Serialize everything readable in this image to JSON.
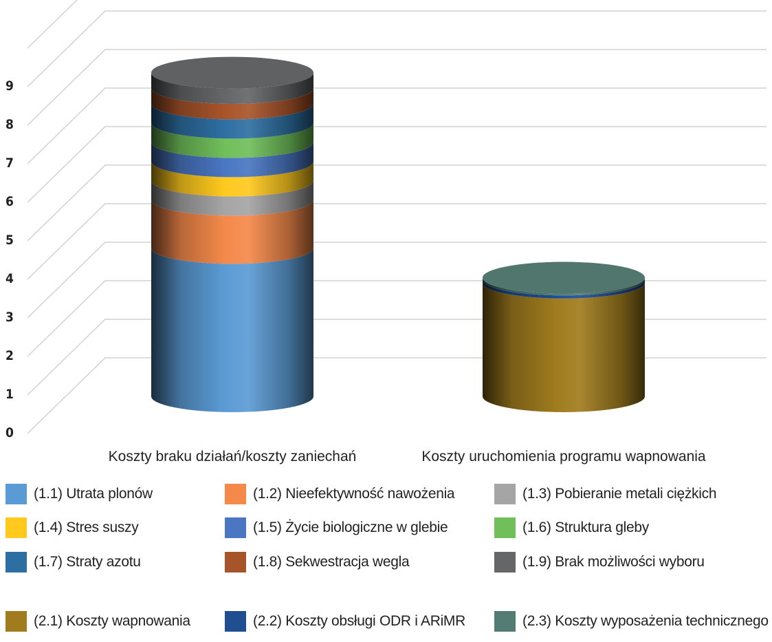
{
  "chart_data": {
    "type": "bar",
    "style": "3d-stacked-cylinder",
    "categories": [
      "Koszty braku działań/koszty zaniechań",
      "Koszty uruchomienia programu wapnowania"
    ],
    "yticks": [
      "0",
      "1",
      "2",
      "3",
      "4",
      "5",
      "6",
      "7",
      "8",
      "9"
    ],
    "ylim": [
      0,
      10
    ],
    "grid": true,
    "legend_position": "bottom",
    "series": [
      {
        "name": "(1.1) Utrata plonów",
        "color": "#5B9BD5",
        "values": [
          3.85,
          0
        ]
      },
      {
        "name": "(1.2) Nieefektywność nawożenia",
        "color": "#F4894A",
        "values": [
          1.25,
          0
        ]
      },
      {
        "name": "(1.3) Pobieranie metali ciężkich",
        "color": "#A5A5A5",
        "values": [
          0.5,
          0
        ]
      },
      {
        "name": "(1.4) Stres suszy",
        "color": "#FFC91E",
        "values": [
          0.5,
          0
        ]
      },
      {
        "name": "(1.5) Życie biologiczne w glebie",
        "color": "#4A76C2",
        "values": [
          0.5,
          0
        ]
      },
      {
        "name": "(1.6) Struktura gleby",
        "color": "#70BF5A",
        "values": [
          0.5,
          0
        ]
      },
      {
        "name": "(1.7) Straty azotu",
        "color": "#2E6FA3",
        "values": [
          0.5,
          0
        ]
      },
      {
        "name": "(1.8) Sekwestracja wegla",
        "color": "#A8542A",
        "values": [
          0.4,
          0
        ]
      },
      {
        "name": "(1.9) Brak możliwości wyboru",
        "color": "#646668",
        "values": [
          0.4,
          0
        ]
      },
      {
        "name": "(2.1) Koszty wapnowania",
        "color": "#A07C1E",
        "values": [
          0,
          2.95
        ]
      },
      {
        "name": "(2.2) Koszty obsługi ODR i ARiMR",
        "color": "#1F4E91",
        "values": [
          0,
          0.08
        ]
      },
      {
        "name": "(2.3) Koszty wyposażenia technicznego",
        "color": "#547C74",
        "values": [
          0,
          0.05
        ]
      }
    ]
  }
}
